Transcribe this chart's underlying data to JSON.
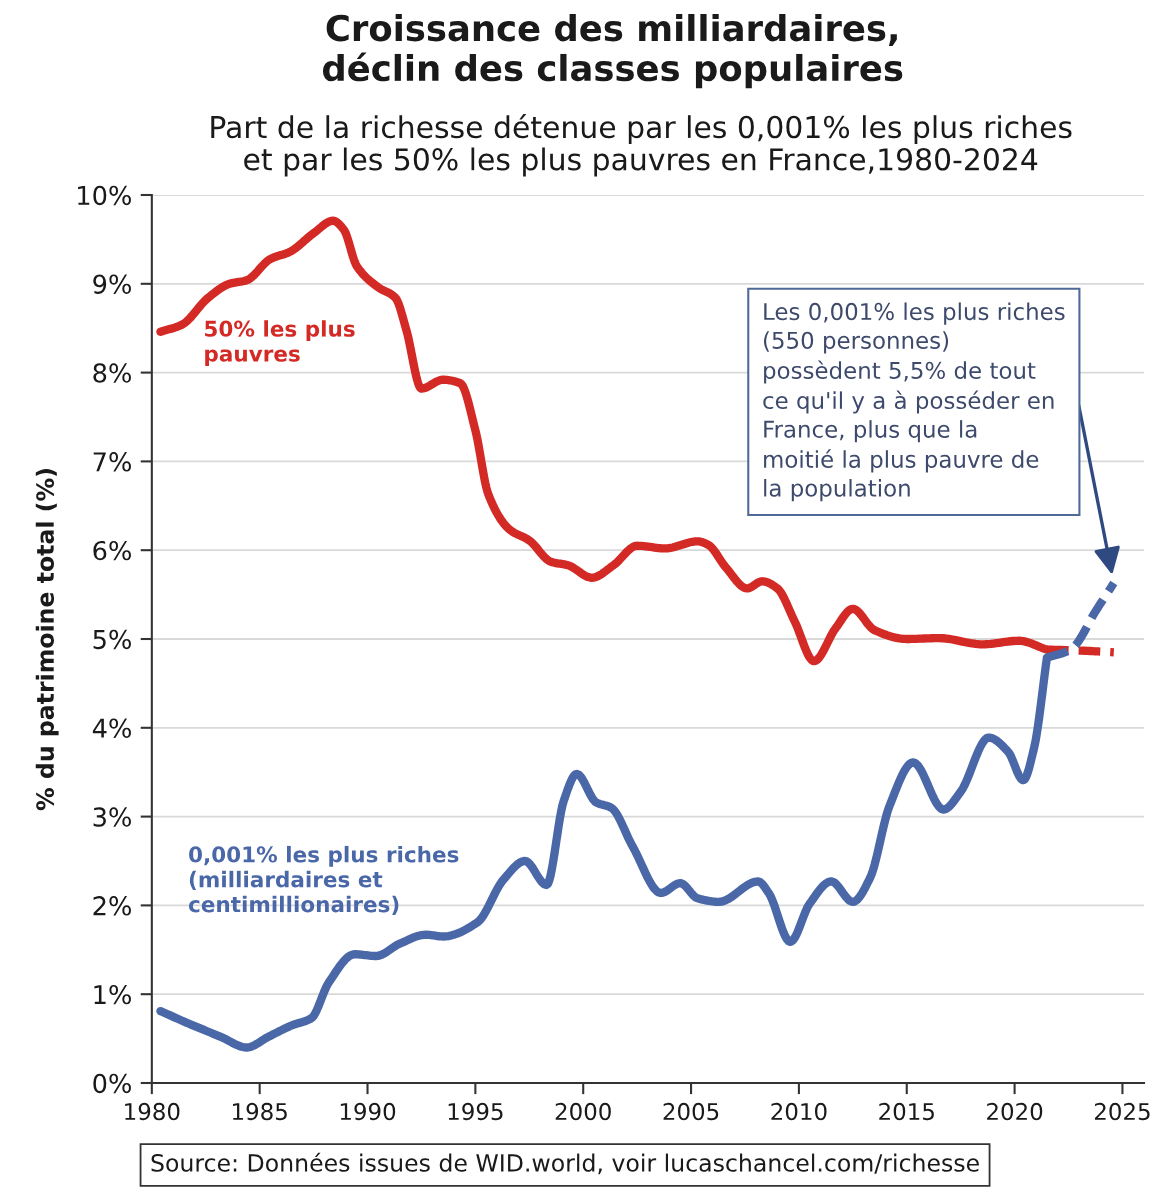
{
  "chart_data": {
    "type": "line",
    "title": "Croissance des milliardaires,\ndéclin des classes populaires",
    "subtitle": "Part de la richesse détenue par les 0,001% les plus riches\net par les 50% les plus pauvres en France,1980-2024",
    "ylabel": "% du patrimoine total (%)",
    "xlim": [
      1980,
      2026
    ],
    "xticks": [
      1980,
      1985,
      1990,
      1995,
      2000,
      2005,
      2010,
      2015,
      2020,
      2025
    ],
    "ylim": [
      0,
      10
    ],
    "yticks": [
      {
        "value": 0,
        "label": "0%"
      },
      {
        "value": 1,
        "label": "1%"
      },
      {
        "value": 2,
        "label": "2%"
      },
      {
        "value": 3,
        "label": "3%"
      },
      {
        "value": 4,
        "label": "4%"
      },
      {
        "value": 5,
        "label": "5%"
      },
      {
        "value": 6,
        "label": "6%"
      },
      {
        "value": 7,
        "label": "7%"
      },
      {
        "value": 8,
        "label": "8%"
      },
      {
        "value": 9,
        "label": "9%"
      },
      {
        "value": 10,
        "label": "10%"
      }
    ],
    "grid": "y",
    "line_style": "solid",
    "marker": "none",
    "series": [
      {
        "name": "50% les plus\npauvres",
        "color": "#d42a26",
        "x": [
          1980.4,
          1981.4,
          1982.6,
          1983.6,
          1984.4,
          1985.5,
          1986.4,
          1987.5,
          1988.4,
          1988.9,
          1989.5,
          1990.5,
          1991.3,
          1991.8,
          1992.5,
          1993.5,
          1994.3,
          1995.0,
          1995.6,
          1996.6,
          1997.5,
          1998.5,
          1999.3,
          2000.4,
          2001.4,
          2002.5,
          2003.8,
          2005.3,
          2005.8,
          2006.6,
          2007.6,
          2008.3,
          2009.0,
          2009.8,
          2010.7,
          2011.7,
          2012.5,
          2013.5,
          2015.0,
          2016.5,
          2018.5,
          2020.2,
          2021.5
        ],
        "values": [
          8.46,
          8.54,
          8.84,
          9.0,
          9.04,
          9.28,
          9.36,
          9.57,
          9.71,
          9.61,
          9.2,
          8.96,
          8.84,
          8.48,
          7.82,
          7.92,
          7.88,
          7.35,
          6.63,
          6.23,
          6.11,
          5.87,
          5.83,
          5.69,
          5.83,
          6.05,
          6.02,
          6.1,
          6.06,
          5.81,
          5.57,
          5.65,
          5.57,
          5.2,
          4.75,
          5.12,
          5.34,
          5.1,
          5.0,
          5.01,
          4.94,
          4.98,
          4.88
        ]
      },
      {
        "color": "#d42a26",
        "line_style": "dashed",
        "x": [
          2021.5,
          2023.0,
          2024.6
        ],
        "values": [
          4.88,
          4.87,
          4.85
        ]
      },
      {
        "name": "0,001% les plus riches\n(milliardaires et\ncentimillionaires)",
        "color": "#4a67a8",
        "x": [
          1980.4,
          1981.7,
          1983.2,
          1984.4,
          1985.4,
          1986.5,
          1987.4,
          1988.2,
          1989.4,
          1990.4,
          1991.5,
          1992.7,
          1993.5,
          1995.1,
          1996.3,
          1997.3,
          1998.3,
          1999.1,
          1999.7,
          2000.6,
          2001.3,
          2002.3,
          2003.6,
          2004.5,
          2005.3,
          2006.3,
          2008.1,
          2008.6,
          2009.6,
          2010.5,
          2011.5,
          2012.5,
          2013.3,
          2014.2,
          2015.3,
          2016.7,
          2017.5,
          2018.8,
          2019.7,
          2020.4,
          2020.9,
          2021.5
        ],
        "values": [
          0.81,
          0.67,
          0.52,
          0.4,
          0.52,
          0.65,
          0.73,
          1.13,
          1.45,
          1.43,
          1.57,
          1.67,
          1.65,
          1.81,
          2.29,
          2.5,
          2.23,
          3.18,
          3.48,
          3.16,
          3.1,
          2.66,
          2.14,
          2.25,
          2.08,
          2.04,
          2.27,
          2.14,
          1.59,
          2.02,
          2.27,
          2.04,
          2.31,
          3.12,
          3.61,
          3.08,
          3.28,
          3.89,
          3.73,
          3.41,
          3.77,
          4.79
        ]
      },
      {
        "color": "#4a67a8",
        "line_style": "dashed",
        "x": [
          2021.5,
          2022.6,
          2023.8,
          2024.6
        ],
        "values": [
          4.79,
          4.88,
          5.33,
          5.63
        ]
      }
    ],
    "annotations": [
      "Les 0,001% les plus riches\n(550 personnes)\npossèdent 5,5% de tout\nce qu'il y a à posséder en\nFrance, plus que la\nmoitié la plus pauvre de\nla population",
      "Source: Données issues de WID.world, voir lucaschancel.com/richesse"
    ]
  }
}
